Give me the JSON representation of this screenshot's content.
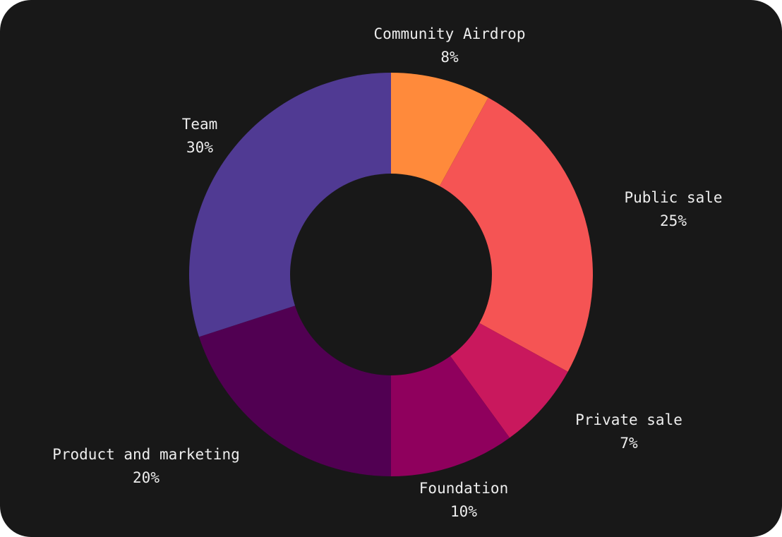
{
  "colors": {
    "card_background": "#181818",
    "donut_hole": "#181818",
    "label_text": "#ededed"
  },
  "chart_data": {
    "type": "pie",
    "donut": true,
    "unit": "%",
    "slices": [
      {
        "name": "Community Airdrop",
        "value": 8,
        "label": "8%",
        "color": "#ff8a3b"
      },
      {
        "name": "Public sale",
        "value": 25,
        "label": "25%",
        "color": "#f55454"
      },
      {
        "name": "Private sale",
        "value": 7,
        "label": "7%",
        "color": "#c9185d"
      },
      {
        "name": "Foundation",
        "value": 10,
        "label": "10%",
        "color": "#8f005d"
      },
      {
        "name": "Product and marketing",
        "value": 20,
        "label": "20%",
        "color": "#510052"
      },
      {
        "name": "Team",
        "value": 30,
        "label": "30%",
        "color": "#503a93"
      }
    ]
  }
}
